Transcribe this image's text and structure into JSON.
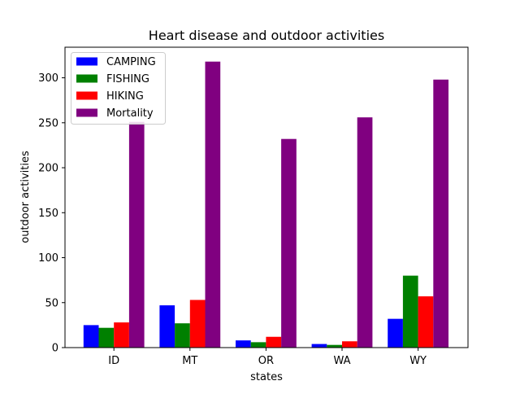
{
  "chart_data": {
    "type": "bar",
    "title": "Heart disease and outdoor activities",
    "xlabel": "states",
    "ylabel": "outdoor activities",
    "categories": [
      "ID",
      "MT",
      "OR",
      "WA",
      "WY"
    ],
    "series": [
      {
        "name": "CAMPING",
        "color": "#0000ff",
        "values": [
          25,
          47,
          8,
          4,
          32
        ]
      },
      {
        "name": "FISHING",
        "color": "#008000",
        "values": [
          22,
          27,
          6,
          3,
          80
        ]
      },
      {
        "name": "HIKING",
        "color": "#ff0000",
        "values": [
          28,
          53,
          12,
          7,
          57
        ]
      },
      {
        "name": "Mortality",
        "color": "#800080",
        "values": [
          251,
          318,
          232,
          256,
          298
        ]
      }
    ],
    "ylim": [
      0,
      334
    ],
    "yticks": [
      0,
      50,
      100,
      150,
      200,
      250,
      300
    ],
    "legend_position": "top-left",
    "grid": false
  }
}
